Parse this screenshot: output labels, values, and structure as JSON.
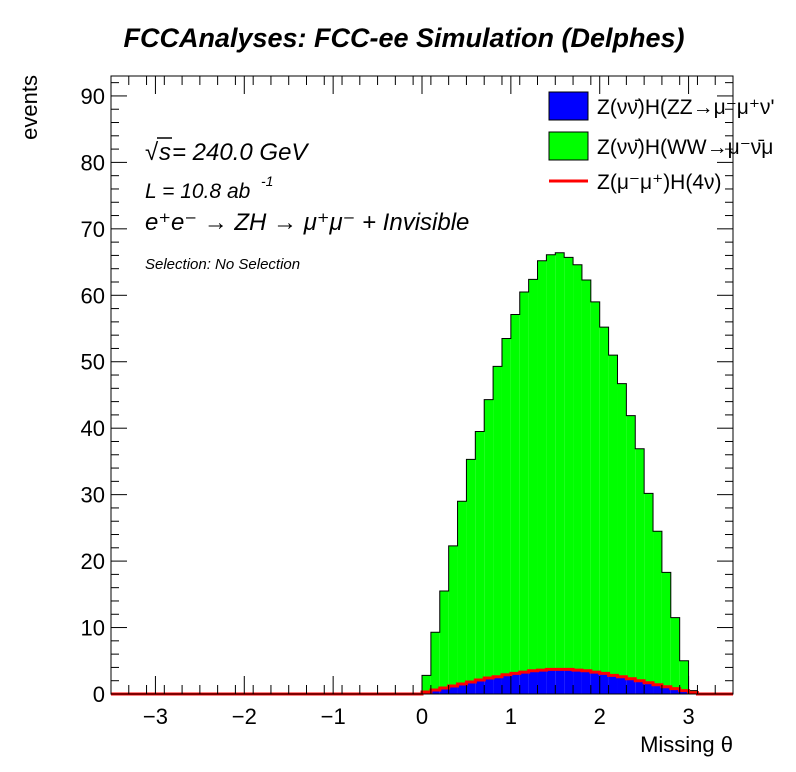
{
  "chart_data": {
    "type": "bar",
    "title": "FCCAnalyses: FCC-ee Simulation (Delphes)",
    "xlabel": "Missing θ",
    "ylabel": "events",
    "xlim": [
      -3.5,
      3.5
    ],
    "ylim": [
      0,
      93
    ],
    "xticks": [
      -3,
      -2,
      -1,
      0,
      1,
      2,
      3
    ],
    "yticks": [
      0,
      10,
      20,
      30,
      40,
      50,
      60,
      70,
      80,
      90
    ],
    "bin_width": 0.1,
    "x": [
      0.05,
      0.15,
      0.25,
      0.35,
      0.45,
      0.55,
      0.65,
      0.75,
      0.85,
      0.95,
      1.05,
      1.15,
      1.25,
      1.35,
      1.45,
      1.55,
      1.65,
      1.75,
      1.85,
      1.95,
      2.05,
      2.15,
      2.25,
      2.35,
      2.45,
      2.55,
      2.65,
      2.75,
      2.85,
      2.95,
      3.05
    ],
    "series": [
      {
        "name": "Z(νν̄)H(ZZ→μ⁻μ⁺ν'",
        "kind": "stacked-fill",
        "color": "#0000ff",
        "values": [
          0.3,
          0.6,
          0.9,
          1.2,
          1.5,
          1.8,
          2.1,
          2.4,
          2.6,
          2.9,
          3.1,
          3.3,
          3.5,
          3.6,
          3.7,
          3.7,
          3.7,
          3.6,
          3.5,
          3.3,
          3.1,
          2.8,
          2.6,
          2.3,
          2.0,
          1.7,
          1.4,
          1.1,
          0.8,
          0.5,
          0.2
        ]
      },
      {
        "name": "Z(νν̄)H(WW→μ⁻ν̄μ",
        "kind": "stacked-fill",
        "color": "#00ff00",
        "values": [
          2.5,
          8.7,
          14.6,
          21.1,
          27.5,
          33.5,
          37.4,
          41.9,
          46.7,
          50.6,
          54.0,
          57.2,
          58.9,
          61.6,
          62.4,
          62.7,
          62.0,
          61.0,
          58.8,
          55.7,
          52.1,
          48.2,
          44.1,
          39.6,
          34.9,
          28.5,
          23.1,
          17.2,
          10.7,
          4.5,
          0.3
        ]
      },
      {
        "name": "Z(μ⁻μ⁺)H(4ν)",
        "kind": "line",
        "color": "#ff0000",
        "values": [
          0.3,
          0.6,
          0.9,
          1.2,
          1.5,
          1.8,
          2.1,
          2.4,
          2.6,
          2.9,
          3.1,
          3.3,
          3.5,
          3.6,
          3.7,
          3.7,
          3.7,
          3.6,
          3.5,
          3.3,
          3.1,
          2.8,
          2.6,
          2.3,
          2.0,
          1.7,
          1.4,
          1.1,
          0.8,
          0.5,
          0.2
        ]
      }
    ],
    "annotations": {
      "sqrt_symbol": "√",
      "sqrt_var": "s",
      "energy": " = 240.0 GeV",
      "lumi": "L = 10.8 ab",
      "lumi_exp": "-1",
      "process": "e⁺e⁻ → ZH → μ⁺μ⁻ + Invisible",
      "selection": "Selection: No Selection"
    },
    "legend_position": "top-right",
    "grid": false
  }
}
